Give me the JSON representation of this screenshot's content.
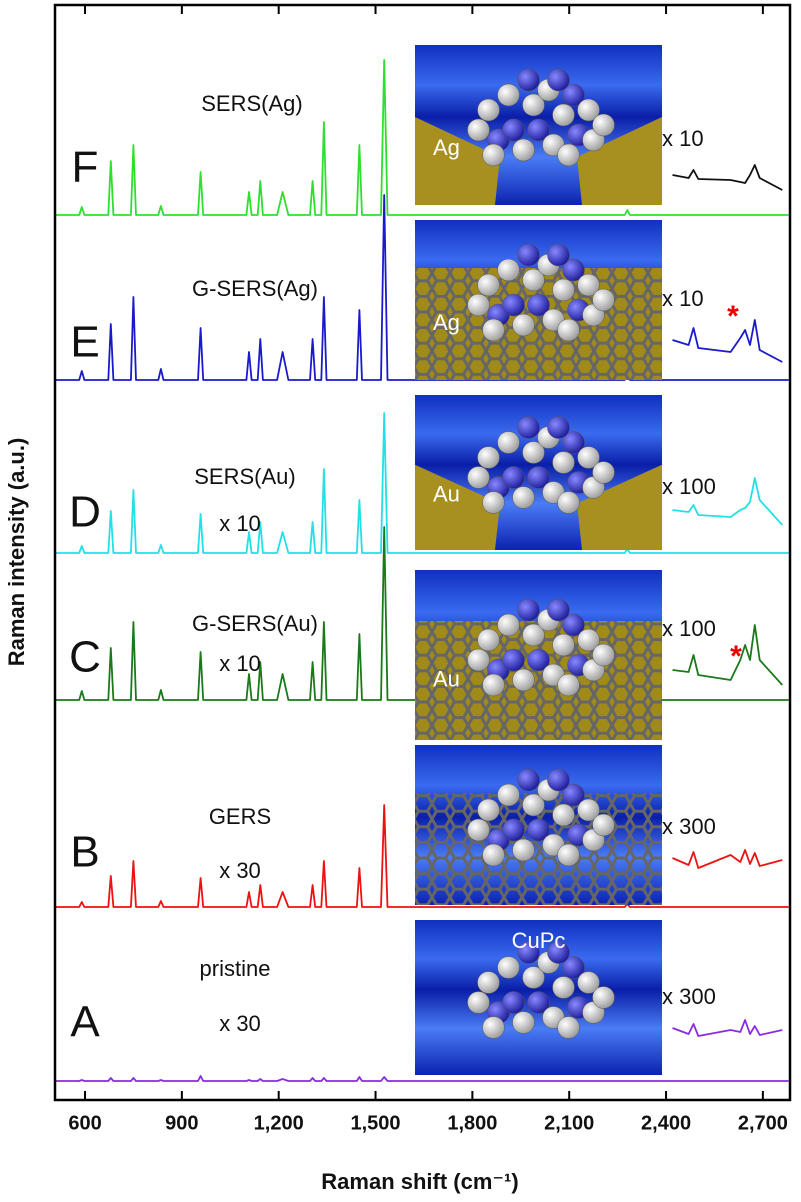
{
  "chart_data": {
    "type": "line",
    "x_label": "Raman shift (cm⁻¹)",
    "y_label": "Raman intensity (a.u.)",
    "xlim": [
      507,
      2784
    ],
    "ylim": [
      0,
      1095
    ],
    "xticks": [
      600,
      900,
      {
        "value": 1200,
        "label": "1,200"
      },
      {
        "value": 1500,
        "label": "1,500"
      },
      {
        "value": 1800,
        "label": "1,800"
      },
      {
        "value": 2100,
        "label": "2,100"
      },
      {
        "value": 2400,
        "label": "2,400"
      },
      {
        "value": 2700,
        "label": "2,700"
      }
    ],
    "x": [
      510,
      582,
      590,
      598,
      672,
      680,
      688,
      742,
      750,
      758,
      827,
      835,
      843,
      950,
      958,
      966,
      1100,
      1108,
      1116,
      1135,
      1143,
      1151,
      1195,
      1212,
      1230,
      1297,
      1305,
      1313,
      1332,
      1340,
      1348,
      1442,
      1450,
      1458,
      1517,
      1527,
      1537,
      1620,
      2272,
      2280,
      2288,
      2780
    ],
    "series": [
      {
        "name": "SERS(Ag)",
        "letter": "F",
        "inset_label": "Ag",
        "color": "#2ee02e",
        "values": [
          885,
          885,
          893,
          885,
          885,
          939,
          885,
          885,
          955,
          885,
          885,
          894,
          885,
          885,
          928,
          885,
          885,
          908,
          885,
          885,
          919,
          885,
          885,
          908,
          885,
          885,
          919,
          885,
          885,
          978,
          885,
          885,
          955,
          885,
          885,
          1040,
          885,
          885,
          885,
          890,
          885,
          885
        ]
      },
      {
        "name": "G-SERS(Ag)",
        "letter": "E",
        "inset_label": "Ag",
        "color": "#1a1acc",
        "values": [
          720,
          720,
          729,
          720,
          720,
          776,
          720,
          720,
          803,
          720,
          720,
          731,
          720,
          720,
          772,
          720,
          720,
          748,
          720,
          720,
          761,
          720,
          720,
          748,
          720,
          720,
          761,
          720,
          720,
          803,
          720,
          720,
          790,
          720,
          720,
          905,
          720,
          720,
          720,
          726,
          720,
          720
        ]
      },
      {
        "name": "SERS(Au)",
        "letter": "D",
        "scale_label": "x 10",
        "inset_label": "Au",
        "color": "#22e0e8",
        "values": [
          547,
          547,
          554,
          547,
          547,
          589,
          547,
          547,
          610,
          547,
          547,
          555,
          547,
          547,
          586,
          547,
          547,
          568,
          547,
          547,
          578,
          547,
          547,
          568,
          547,
          547,
          578,
          547,
          547,
          631,
          547,
          547,
          600,
          547,
          547,
          687,
          547,
          547,
          547,
          551,
          547,
          547
        ]
      },
      {
        "name": "G-SERS(Au)",
        "letter": "C",
        "scale_label": "x 10",
        "inset_label": "Au",
        "color": "#1a7a1a",
        "values": [
          400,
          400,
          409,
          400,
          400,
          452,
          400,
          400,
          478,
          400,
          400,
          410,
          400,
          400,
          448,
          400,
          400,
          426,
          400,
          400,
          438,
          400,
          400,
          426,
          400,
          400,
          438,
          400,
          400,
          478,
          400,
          400,
          466,
          400,
          400,
          573,
          400,
          400,
          400,
          405,
          400,
          400
        ]
      },
      {
        "name": "GERS",
        "letter": "B",
        "scale_label": "x 30",
        "color": "#ee1111",
        "values": [
          193,
          193,
          198,
          193,
          193,
          224,
          193,
          193,
          239,
          193,
          193,
          199,
          193,
          193,
          222,
          193,
          193,
          208,
          193,
          193,
          215,
          193,
          193,
          208,
          193,
          193,
          215,
          193,
          193,
          239,
          193,
          193,
          232,
          193,
          193,
          295,
          193,
          193,
          193,
          196,
          193,
          193
        ]
      },
      {
        "name": "pristine",
        "letter": "A",
        "scale_label": "x 30",
        "inset_label": "CuPc",
        "color": "#8a2be2",
        "values": [
          19,
          19,
          20,
          19,
          19,
          22,
          19,
          19,
          22,
          19,
          19,
          20,
          19,
          19,
          24,
          19,
          19,
          20,
          19,
          19,
          21,
          19,
          19,
          21,
          19,
          19,
          22,
          19,
          19,
          22,
          19,
          19,
          23,
          19,
          19,
          23,
          19,
          19,
          19,
          19,
          19,
          19
        ]
      }
    ],
    "zoom_x": [
      2420,
      2470,
      2485,
      2500,
      2600,
      2630,
      2645,
      2660,
      2675,
      2690,
      2760
    ],
    "zoom_series": [
      {
        "label": "x 10",
        "color": "#111111",
        "values": [
          925,
          922,
          930,
          921,
          920,
          918,
          917,
          925,
          935,
          922,
          910
        ]
      },
      {
        "label": "x 10",
        "star": "*",
        "color": "#1a1acc",
        "values": [
          760,
          755,
          772,
          752,
          748,
          762,
          770,
          755,
          780,
          750,
          738
        ]
      },
      {
        "label": "x 100",
        "color": "#22e0e8",
        "values": [
          590,
          588,
          595,
          585,
          583,
          590,
          592,
          598,
          622,
          600,
          575
        ]
      },
      {
        "label": "x 100",
        "star": "*",
        "color": "#1a7a1a",
        "values": [
          430,
          428,
          445,
          425,
          420,
          440,
          455,
          440,
          475,
          440,
          415
        ]
      },
      {
        "label": "x 300",
        "color": "#ee1111",
        "values": [
          242,
          235,
          248,
          232,
          245,
          238,
          250,
          236,
          247,
          234,
          240
        ]
      },
      {
        "label": "x 300",
        "color": "#8a2be2",
        "values": [
          72,
          66,
          76,
          64,
          70,
          68,
          80,
          66,
          74,
          65,
          70
        ]
      }
    ]
  }
}
